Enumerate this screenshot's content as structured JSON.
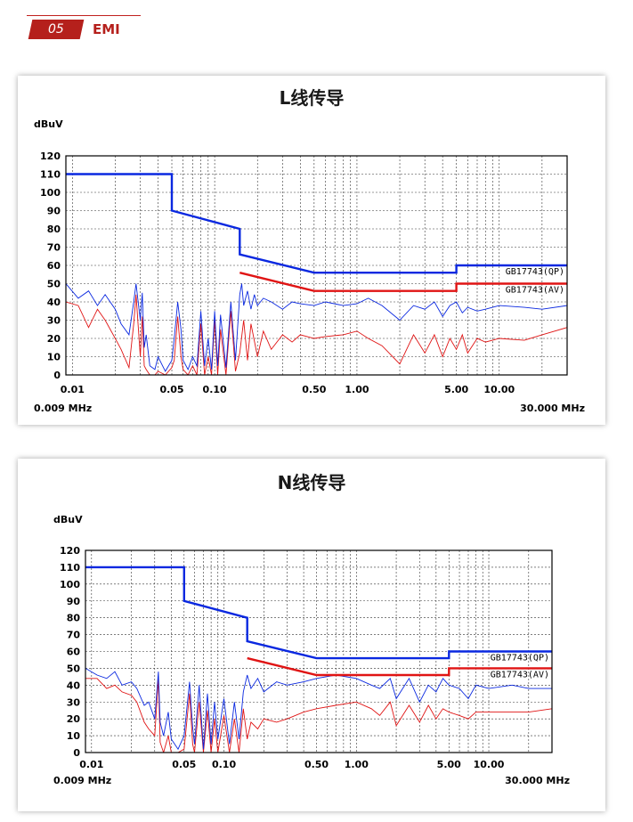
{
  "header": {
    "number": "05",
    "section": "EMI"
  },
  "chart_data": [
    {
      "type": "line",
      "title": "L线传导",
      "ylabel": "dBuV",
      "yticks": [
        "120",
        "110",
        "100",
        "90",
        "80",
        "70",
        "60",
        "50",
        "40",
        "30",
        "20",
        "10",
        "0"
      ],
      "ylim": [
        0,
        120
      ],
      "xscale": "log",
      "xlim": [
        0.009,
        30.0
      ],
      "xtick_labels": [
        {
          "value": 0.01,
          "label": "0.01"
        },
        {
          "value": 0.05,
          "label": "0.05"
        },
        {
          "value": 0.1,
          "label": "0.10"
        },
        {
          "value": 0.5,
          "label": "0.50"
        },
        {
          "value": 1.0,
          "label": "1.00"
        },
        {
          "value": 5.0,
          "label": "5.00"
        },
        {
          "value": 10.0,
          "label": "10.00"
        }
      ],
      "start_label": "0.009 MHz",
      "stop_label": "30.000 MHz",
      "grid": true,
      "colors": {
        "qp": "#0a28e0",
        "av": "#e01414"
      },
      "limit_lines": [
        {
          "name": "GB17743(QP)",
          "x": [
            0.009,
            0.05,
            0.05,
            0.15,
            0.15,
            0.5,
            5.0,
            5.0,
            30.0
          ],
          "y": [
            110,
            110,
            90,
            80,
            66,
            56,
            56,
            60,
            60
          ]
        },
        {
          "name": "GB17743(AV)",
          "x": [
            0.15,
            0.5,
            5.0,
            5.0,
            30.0
          ],
          "y": [
            56,
            46,
            46,
            50,
            50
          ]
        }
      ],
      "series": [
        {
          "id": "qp",
          "x": [
            0.009,
            0.011,
            0.013,
            0.015,
            0.017,
            0.02,
            0.022,
            0.025,
            0.027,
            0.028,
            0.03,
            0.031,
            0.032,
            0.033,
            0.035,
            0.038,
            0.04,
            0.045,
            0.05,
            0.052,
            0.055,
            0.058,
            0.06,
            0.065,
            0.07,
            0.075,
            0.08,
            0.085,
            0.09,
            0.095,
            0.1,
            0.105,
            0.11,
            0.12,
            0.13,
            0.14,
            0.15,
            0.155,
            0.16,
            0.17,
            0.18,
            0.19,
            0.2,
            0.22,
            0.25,
            0.3,
            0.35,
            0.4,
            0.5,
            0.6,
            0.8,
            1.0,
            1.2,
            1.5,
            2.0,
            2.5,
            3.0,
            3.5,
            4.0,
            4.5,
            5.0,
            5.5,
            6.0,
            7.0,
            8.0,
            10.0,
            15.0,
            20.0,
            30.0
          ],
          "y": [
            50,
            42,
            46,
            38,
            44,
            36,
            28,
            22,
            40,
            50,
            30,
            45,
            15,
            22,
            5,
            3,
            10,
            2,
            8,
            20,
            40,
            25,
            8,
            3,
            10,
            5,
            35,
            5,
            20,
            3,
            35,
            5,
            33,
            4,
            40,
            8,
            44,
            50,
            38,
            46,
            36,
            44,
            38,
            42,
            40,
            36,
            40,
            39,
            38,
            40,
            38,
            39,
            42,
            38,
            30,
            38,
            36,
            40,
            32,
            38,
            40,
            34,
            37,
            35,
            36,
            38,
            37,
            36,
            38
          ]
        },
        {
          "id": "av",
          "x": [
            0.009,
            0.011,
            0.013,
            0.015,
            0.017,
            0.02,
            0.022,
            0.025,
            0.027,
            0.028,
            0.03,
            0.031,
            0.032,
            0.033,
            0.035,
            0.038,
            0.04,
            0.045,
            0.05,
            0.052,
            0.055,
            0.058,
            0.06,
            0.065,
            0.07,
            0.075,
            0.08,
            0.085,
            0.09,
            0.095,
            0.1,
            0.105,
            0.11,
            0.12,
            0.13,
            0.14,
            0.15,
            0.16,
            0.17,
            0.18,
            0.2,
            0.22,
            0.25,
            0.3,
            0.35,
            0.4,
            0.5,
            0.6,
            0.8,
            1.0,
            1.2,
            1.5,
            2.0,
            2.5,
            3.0,
            3.5,
            4.0,
            4.5,
            5.0,
            5.5,
            6.0,
            7.0,
            8.0,
            10.0,
            15.0,
            20.0,
            30.0
          ],
          "y": [
            40,
            38,
            26,
            36,
            30,
            20,
            14,
            4,
            28,
            44,
            10,
            32,
            5,
            3,
            0,
            0,
            2,
            0,
            4,
            8,
            32,
            10,
            3,
            0,
            5,
            0,
            28,
            0,
            10,
            0,
            30,
            0,
            25,
            0,
            35,
            2,
            12,
            30,
            8,
            28,
            10,
            24,
            14,
            22,
            18,
            22,
            20,
            21,
            22,
            24,
            20,
            16,
            6,
            22,
            12,
            22,
            10,
            20,
            14,
            22,
            12,
            20,
            18,
            20,
            19,
            22,
            26
          ]
        }
      ]
    },
    {
      "type": "line",
      "title": "N线传导",
      "ylabel": "dBuV",
      "yticks": [
        "120",
        "110",
        "100",
        "90",
        "80",
        "70",
        "60",
        "50",
        "40",
        "30",
        "20",
        "10",
        "0"
      ],
      "ylim": [
        0,
        120
      ],
      "xscale": "log",
      "xlim": [
        0.009,
        30.0
      ],
      "xtick_labels": [
        {
          "value": 0.01,
          "label": "0.01"
        },
        {
          "value": 0.05,
          "label": "0.05"
        },
        {
          "value": 0.1,
          "label": "0.10"
        },
        {
          "value": 0.5,
          "label": "0.50"
        },
        {
          "value": 1.0,
          "label": "1.00"
        },
        {
          "value": 5.0,
          "label": "5.00"
        },
        {
          "value": 10.0,
          "label": "10.00"
        }
      ],
      "start_label": "0.009 MHz",
      "stop_label": "30.000 MHz",
      "grid": true,
      "colors": {
        "qp": "#0a28e0",
        "av": "#e01414"
      },
      "limit_lines": [
        {
          "name": "GB17743(QP)",
          "x": [
            0.009,
            0.05,
            0.05,
            0.15,
            0.15,
            0.5,
            5.0,
            5.0,
            30.0
          ],
          "y": [
            110,
            110,
            90,
            80,
            66,
            56,
            56,
            60,
            60
          ]
        },
        {
          "name": "GB17743(AV)",
          "x": [
            0.15,
            0.5,
            5.0,
            5.0,
            30.0
          ],
          "y": [
            56,
            46,
            46,
            50,
            50
          ]
        }
      ],
      "series": [
        {
          "id": "qp",
          "x": [
            0.009,
            0.011,
            0.013,
            0.015,
            0.017,
            0.02,
            0.022,
            0.025,
            0.027,
            0.03,
            0.032,
            0.033,
            0.035,
            0.038,
            0.04,
            0.045,
            0.05,
            0.055,
            0.058,
            0.06,
            0.065,
            0.07,
            0.075,
            0.08,
            0.085,
            0.09,
            0.1,
            0.11,
            0.12,
            0.13,
            0.14,
            0.15,
            0.16,
            0.18,
            0.2,
            0.25,
            0.3,
            0.4,
            0.5,
            0.7,
            1.0,
            1.3,
            1.5,
            1.8,
            2.0,
            2.5,
            3.0,
            3.5,
            4.0,
            4.5,
            5.0,
            6.0,
            7.0,
            8.0,
            10.0,
            15.0,
            20.0,
            30.0
          ],
          "y": [
            50,
            46,
            44,
            48,
            40,
            42,
            38,
            28,
            30,
            20,
            48,
            18,
            10,
            24,
            8,
            2,
            10,
            42,
            15,
            5,
            40,
            2,
            35,
            5,
            30,
            8,
            32,
            5,
            30,
            8,
            36,
            46,
            38,
            44,
            36,
            42,
            40,
            42,
            44,
            46,
            44,
            40,
            38,
            44,
            32,
            44,
            30,
            40,
            36,
            44,
            40,
            38,
            32,
            40,
            38,
            40,
            38,
            38
          ]
        },
        {
          "id": "av",
          "x": [
            0.009,
            0.011,
            0.013,
            0.015,
            0.017,
            0.02,
            0.022,
            0.025,
            0.027,
            0.03,
            0.032,
            0.033,
            0.035,
            0.038,
            0.04,
            0.045,
            0.05,
            0.055,
            0.058,
            0.06,
            0.065,
            0.07,
            0.075,
            0.08,
            0.085,
            0.09,
            0.1,
            0.11,
            0.12,
            0.13,
            0.14,
            0.15,
            0.16,
            0.18,
            0.2,
            0.25,
            0.3,
            0.4,
            0.5,
            0.7,
            1.0,
            1.3,
            1.5,
            1.8,
            2.0,
            2.5,
            3.0,
            3.5,
            4.0,
            4.5,
            5.0,
            6.0,
            7.0,
            8.0,
            10.0,
            15.0,
            20.0,
            30.0
          ],
          "y": [
            44,
            44,
            38,
            40,
            36,
            34,
            30,
            18,
            14,
            10,
            44,
            6,
            0,
            10,
            0,
            0,
            2,
            35,
            5,
            0,
            30,
            0,
            25,
            0,
            20,
            0,
            22,
            0,
            20,
            0,
            26,
            8,
            18,
            14,
            20,
            18,
            20,
            24,
            26,
            28,
            30,
            26,
            22,
            30,
            16,
            28,
            18,
            28,
            20,
            26,
            24,
            22,
            20,
            24,
            24,
            24,
            24,
            26
          ]
        }
      ]
    }
  ]
}
